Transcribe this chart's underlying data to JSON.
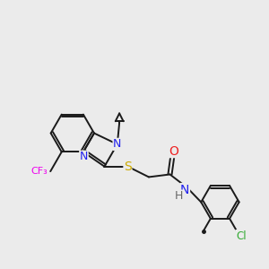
{
  "bg_color": "#ebebeb",
  "bond_color": "#1a1a1a",
  "bond_width": 1.4,
  "atom_colors": {
    "N": "#2222ee",
    "S": "#ccaa00",
    "O": "#ee2222",
    "F": "#ee00ee",
    "Cl": "#33aa33",
    "C": "#1a1a1a",
    "H": "#666666"
  },
  "font_size": 8.5
}
